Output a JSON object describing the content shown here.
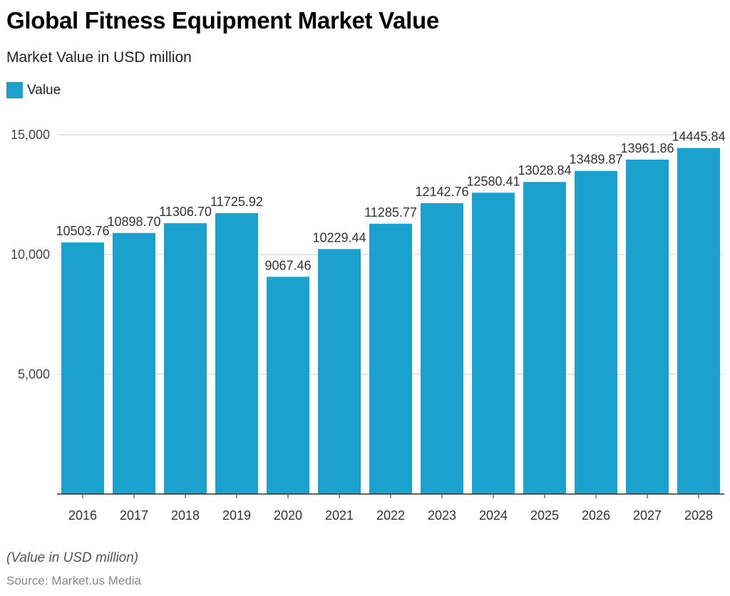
{
  "title": "Global Fitness Equipment Market Value",
  "subtitle": "Market Value in USD million",
  "note": "(Value in USD million)",
  "source": "Source: Market.us Media",
  "chart_data": {
    "type": "bar",
    "title": "Global Fitness Equipment Market Value",
    "subtitle": "Market Value in USD million",
    "xlabel": "",
    "ylabel": "",
    "categories": [
      "2016",
      "2017",
      "2018",
      "2019",
      "2020",
      "2021",
      "2022",
      "2023",
      "2024",
      "2025",
      "2026",
      "2027",
      "2028"
    ],
    "series": [
      {
        "name": "Value",
        "values": [
          10503.76,
          10898.7,
          11306.7,
          11725.92,
          9067.46,
          10229.44,
          11285.77,
          12142.76,
          12580.41,
          13028.84,
          13489.87,
          13961.86,
          14445.84
        ],
        "labels": [
          "10503.76",
          "10898.70",
          "11306.70",
          "11725.92",
          "9067.46",
          "10229.44",
          "11285.77",
          "12142.76",
          "12580.41",
          "13028.84",
          "13489.87",
          "13961.86",
          "14445.84"
        ]
      }
    ],
    "ylim": [
      0,
      15000
    ],
    "yticks": [
      5000,
      10000,
      15000
    ],
    "ytick_labels": [
      "5,000",
      "10,000",
      "15,000"
    ],
    "grid": true,
    "legend": "top-left",
    "color": "#1aa1cd"
  }
}
